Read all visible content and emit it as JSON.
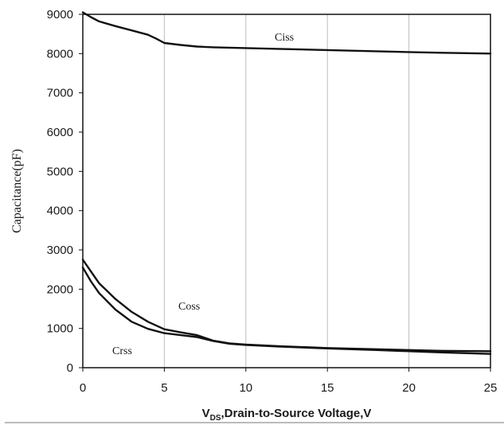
{
  "chart_data": {
    "type": "line",
    "xlabel": {
      "main": "V",
      "subscript": "DS",
      "rest": ",Drain-to-Source Voltage,V"
    },
    "ylabel": "Capacitance(pF)",
    "xlim": [
      0,
      25
    ],
    "ylim": [
      0,
      9000
    ],
    "x_ticks": [
      "0",
      "5",
      "10",
      "15",
      "20",
      "25"
    ],
    "y_ticks": [
      "0",
      "1000",
      "2000",
      "3000",
      "4000",
      "5000",
      "6000",
      "7000",
      "8000",
      "9000"
    ],
    "grid": {
      "vertical": true,
      "horizontal": false
    },
    "series": [
      {
        "name": "Ciss",
        "x": [
          0,
          0.5,
          1,
          2,
          3,
          4,
          4.5,
          5,
          6,
          7,
          8,
          10,
          12,
          15,
          18,
          20,
          22,
          25
        ],
        "y": [
          9050,
          8930,
          8820,
          8700,
          8590,
          8480,
          8380,
          8270,
          8220,
          8180,
          8160,
          8140,
          8120,
          8090,
          8060,
          8040,
          8020,
          8000
        ]
      },
      {
        "name": "Coss",
        "x": [
          0,
          0.5,
          1,
          2,
          3,
          4,
          5,
          6,
          7,
          8,
          9,
          10,
          12,
          15,
          18,
          20,
          22,
          25
        ],
        "y": [
          2750,
          2450,
          2150,
          1750,
          1420,
          1170,
          980,
          900,
          830,
          690,
          620,
          590,
          550,
          500,
          470,
          450,
          430,
          420
        ]
      },
      {
        "name": "Crss",
        "x": [
          0,
          0.5,
          1,
          2,
          3,
          4,
          5,
          6,
          7,
          8,
          9,
          10,
          12,
          15,
          18,
          20,
          22,
          25
        ],
        "y": [
          2550,
          2200,
          1900,
          1480,
          1170,
          990,
          880,
          830,
          780,
          680,
          610,
          580,
          540,
          490,
          450,
          420,
          390,
          350
        ]
      }
    ]
  }
}
